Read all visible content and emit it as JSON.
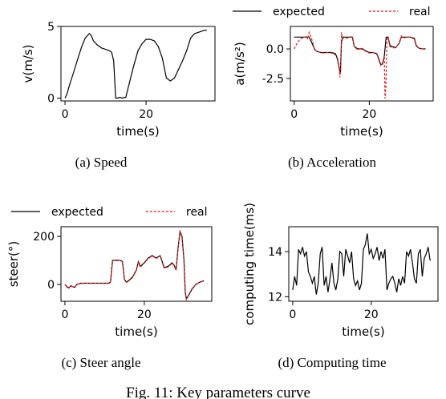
{
  "figure_caption": "Fig. 11: Key parameters curve",
  "chart_data": [
    {
      "type": "line",
      "caption": "(a) Speed",
      "xlabel": "time(s)",
      "ylabel": "v(m/s)",
      "xlim": [
        -1,
        37
      ],
      "ylim": [
        -0.2,
        5.0
      ],
      "xticks": [
        0,
        20
      ],
      "yticks": [
        0,
        5
      ],
      "series": [
        {
          "name": "",
          "color": "#000000",
          "style": "solid",
          "x": [
            0,
            0.5,
            1,
            2,
            3,
            4,
            5,
            6,
            6.5,
            7,
            8,
            9,
            10,
            11,
            11.5,
            12,
            12.5,
            13,
            13.5,
            14,
            15,
            16,
            17,
            18,
            19,
            20,
            21,
            22,
            23,
            24,
            25,
            26,
            27,
            28,
            29,
            30,
            31,
            32,
            33,
            34,
            35
          ],
          "y": [
            0,
            0.3,
            0.8,
            1.7,
            2.6,
            3.5,
            4.2,
            4.5,
            4.35,
            4.0,
            3.7,
            3.5,
            3.4,
            3.3,
            3.2,
            2.6,
            0,
            0,
            0.05,
            0,
            0.05,
            1.2,
            2.3,
            3.3,
            3.8,
            4.1,
            4.1,
            4.0,
            3.6,
            2.8,
            1.4,
            1.2,
            1.4,
            2.0,
            2.6,
            3.3,
            4.2,
            4.5,
            4.6,
            4.7,
            4.75
          ]
        }
      ]
    },
    {
      "type": "line",
      "caption": "(b) Acceleration",
      "xlabel": "time(s)",
      "ylabel": "a(m/s²)",
      "xlim": [
        -1,
        37
      ],
      "ylim": [
        -4.4,
        1.9
      ],
      "xticks": [
        0,
        20
      ],
      "yticks": [
        0.0,
        -2.5
      ],
      "legend": {
        "placement": "top",
        "entries": [
          "expected",
          "real"
        ]
      },
      "series": [
        {
          "name": "expected",
          "color": "#000000",
          "style": "solid",
          "x": [
            0,
            1,
            2,
            3,
            3.3,
            4,
            5,
            5.6,
            6,
            7,
            8,
            9,
            10,
            11,
            11.5,
            12,
            12.3,
            12.6,
            13,
            13.5,
            14,
            15,
            15.5,
            16,
            17,
            18,
            19,
            20,
            21,
            22,
            22.5,
            23,
            23.5,
            24,
            24.5,
            25,
            25.5,
            26,
            27,
            28,
            28.5,
            29,
            30,
            31,
            32,
            32.5,
            33,
            34,
            35
          ],
          "y": [
            1,
            1,
            1,
            1,
            1,
            1,
            0.3,
            -0.1,
            -0.2,
            -0.3,
            -0.3,
            -0.3,
            -0.3,
            -0.4,
            -0.8,
            -1.6,
            -2.1,
            0.6,
            1.0,
            1.0,
            1.0,
            1.0,
            1.0,
            0.2,
            0,
            0,
            -0.15,
            -0.3,
            -0.3,
            -0.4,
            -0.8,
            -1.3,
            -1.3,
            -0.6,
            1.0,
            1.0,
            0.3,
            0.2,
            0.1,
            0.5,
            1.0,
            1.0,
            1.0,
            1.0,
            0.9,
            0.3,
            0.1,
            0,
            0
          ]
        },
        {
          "name": "real",
          "color": "#e01f1f",
          "style": "dashed",
          "x": [
            0,
            0.5,
            1,
            1.5,
            2,
            3,
            3.3,
            3.6,
            4,
            4.5,
            5,
            5.5,
            6,
            7,
            8,
            9,
            10,
            11,
            11.5,
            12,
            12.2,
            12.4,
            12.6,
            12.8,
            13,
            13.5,
            14,
            15,
            15.5,
            16,
            17,
            18,
            19,
            20,
            21,
            22,
            22.5,
            23,
            23.5,
            24,
            24.2,
            24.4,
            24.7,
            25,
            25.5,
            26,
            27,
            28,
            28.5,
            29,
            30,
            31,
            32,
            32.5,
            33,
            34,
            35
          ],
          "y": [
            0.0,
            0.3,
            0.6,
            0.8,
            0.9,
            1.0,
            1.1,
            0.8,
            1.4,
            1.0,
            0.5,
            -0.1,
            -0.2,
            -0.3,
            -0.35,
            -0.3,
            -0.35,
            -0.5,
            -0.9,
            -1.7,
            -2.4,
            -1.8,
            1.4,
            0.9,
            0.9,
            1.0,
            0.9,
            1.0,
            1.1,
            0.2,
            -0.1,
            0.1,
            -0.2,
            -0.35,
            -0.3,
            -0.45,
            -0.9,
            -1.4,
            -1.2,
            -0.6,
            -4.2,
            -3.2,
            0.8,
            1.0,
            0.2,
            0.1,
            0.1,
            0.5,
            1.1,
            0.9,
            1.0,
            1.0,
            0.8,
            0.2,
            0.1,
            0,
            0
          ]
        }
      ]
    },
    {
      "type": "line",
      "caption": "(c) Steer angle",
      "xlabel": "time(s)",
      "ylabel": "steer(°)",
      "xlim": [
        -1,
        37
      ],
      "ylim": [
        -70,
        240
      ],
      "xticks": [
        0,
        20
      ],
      "yticks": [
        0,
        200
      ],
      "legend": {
        "placement": "top",
        "entries": [
          "expected",
          "real"
        ]
      },
      "series": [
        {
          "name": "expected",
          "color": "#000000",
          "style": "solid",
          "x": [
            0,
            0.5,
            1,
            1.5,
            2,
            2.5,
            3,
            4,
            5,
            6,
            7,
            8,
            9,
            10,
            11,
            11.5,
            12,
            13,
            14,
            14.5,
            15,
            15.5,
            16,
            17,
            18,
            18.5,
            19,
            20,
            21,
            22,
            23,
            24,
            24.5,
            25,
            26,
            27,
            27.5,
            28,
            28.5,
            29,
            29.5,
            30,
            30.3,
            30.6,
            31,
            32,
            33,
            34,
            35
          ],
          "y": [
            0,
            -10,
            -15,
            -5,
            -10,
            -12,
            0,
            5,
            5,
            5,
            5,
            5,
            5,
            5,
            5,
            10,
            100,
            100,
            100,
            95,
            20,
            10,
            15,
            30,
            60,
            95,
            75,
            90,
            110,
            120,
            110,
            120,
            95,
            70,
            75,
            90,
            80,
            60,
            150,
            220,
            200,
            100,
            -30,
            -60,
            -50,
            -20,
            0,
            10,
            15
          ]
        },
        {
          "name": "real",
          "color": "#e01f1f",
          "style": "dashed",
          "x": [
            0,
            0.5,
            1,
            1.5,
            2,
            2.5,
            3,
            4,
            5,
            6,
            7,
            8,
            9,
            10,
            11,
            11.5,
            12,
            13,
            14,
            14.5,
            15,
            15.5,
            16,
            17,
            18,
            18.5,
            19,
            20,
            21,
            22,
            23,
            24,
            24.5,
            25,
            26,
            27,
            27.5,
            28,
            28.5,
            29,
            29.5,
            30,
            30.3,
            30.6,
            31,
            32,
            33,
            34,
            35
          ],
          "y": [
            0,
            -8,
            -13,
            -6,
            -9,
            -10,
            0,
            4,
            5,
            5,
            5,
            5,
            5,
            5,
            5,
            12,
            98,
            102,
            100,
            92,
            18,
            8,
            13,
            28,
            58,
            92,
            72,
            88,
            108,
            118,
            108,
            118,
            92,
            68,
            72,
            88,
            78,
            58,
            148,
            225,
            195,
            95,
            -35,
            -62,
            -48,
            -18,
            0,
            9,
            14
          ]
        }
      ]
    },
    {
      "type": "line",
      "caption": "(d) Computing time",
      "xlabel": "time(s)",
      "ylabel": "computing time(ms)",
      "xlim": [
        -1,
        37
      ],
      "ylim": [
        11.8,
        15.1
      ],
      "xticks": [
        0,
        20
      ],
      "yticks": [
        12,
        14
      ],
      "series": [
        {
          "name": "",
          "color": "#000000",
          "style": "solid",
          "x": [
            0,
            0.5,
            1,
            1.5,
            2,
            2.5,
            3,
            3.5,
            4,
            4.5,
            5,
            5.5,
            6,
            6.5,
            7,
            7.5,
            8,
            8.5,
            9,
            9.5,
            10,
            10.5,
            11,
            11.5,
            12,
            12.5,
            13,
            13.5,
            14,
            14.5,
            15,
            15.5,
            16,
            16.5,
            17,
            17.5,
            18,
            18.5,
            19,
            19.5,
            20,
            20.5,
            21,
            21.5,
            22,
            22.5,
            23,
            23.5,
            24,
            24.5,
            25,
            25.5,
            26,
            26.5,
            27,
            27.5,
            28,
            28.5,
            29,
            29.5,
            30,
            30.5,
            31,
            31.5,
            32,
            32.5,
            33,
            33.5,
            34,
            34.5,
            35
          ],
          "y": [
            12.3,
            12.9,
            12.5,
            14.1,
            13.9,
            14.2,
            13.8,
            14.0,
            13.1,
            12.9,
            12.6,
            12.9,
            12.1,
            12.6,
            13.9,
            14.2,
            12.5,
            12.9,
            12.2,
            12.8,
            13.5,
            12.6,
            12.3,
            12.8,
            14.0,
            13.9,
            12.9,
            14.1,
            13.8,
            13.5,
            14.0,
            12.8,
            12.5,
            12.7,
            12.3,
            12.6,
            14.1,
            14.3,
            14.8,
            13.9,
            14.1,
            13.7,
            13.9,
            14.2,
            13.6,
            14.0,
            13.7,
            14.1,
            12.3,
            12.6,
            12.8,
            12.9,
            12.6,
            12.2,
            12.8,
            12.5,
            12.9,
            12.6,
            14.0,
            13.8,
            14.1,
            13.5,
            12.8,
            12.6,
            13.9,
            14.1,
            12.9,
            13.7,
            13.9,
            14.2,
            13.6
          ]
        }
      ]
    }
  ]
}
